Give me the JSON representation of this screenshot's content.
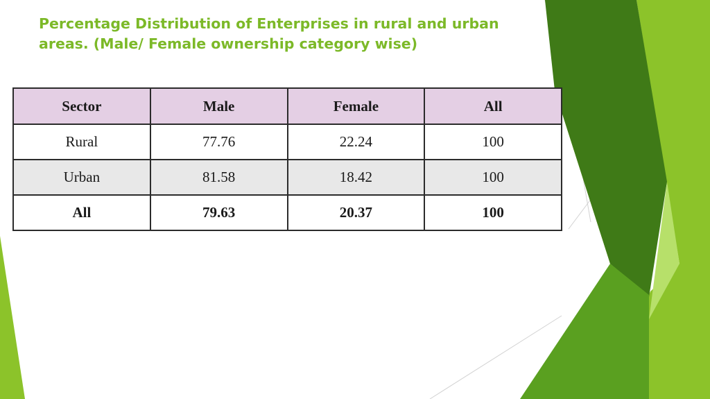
{
  "slide": {
    "title": "Percentage Distribution of Enterprises in rural and urban areas. (Male/ Female ownership category wise)"
  },
  "table": {
    "headers": [
      "Sector",
      "Male",
      "Female",
      "All"
    ],
    "rows": [
      [
        "Rural",
        "77.76",
        "22.24",
        "100"
      ],
      [
        "Urban",
        "81.58",
        "18.42",
        "100"
      ],
      [
        "All",
        "79.63",
        "20.37",
        "100"
      ]
    ]
  },
  "theme": {
    "title_color": "#7cb928",
    "header_fill": "#e4cfe4",
    "shaded_row_fill": "#e8e8e8",
    "accent_light": "#8cc32a",
    "accent_dark": "#3f7a17",
    "accent_pale": "#b7e06a"
  }
}
